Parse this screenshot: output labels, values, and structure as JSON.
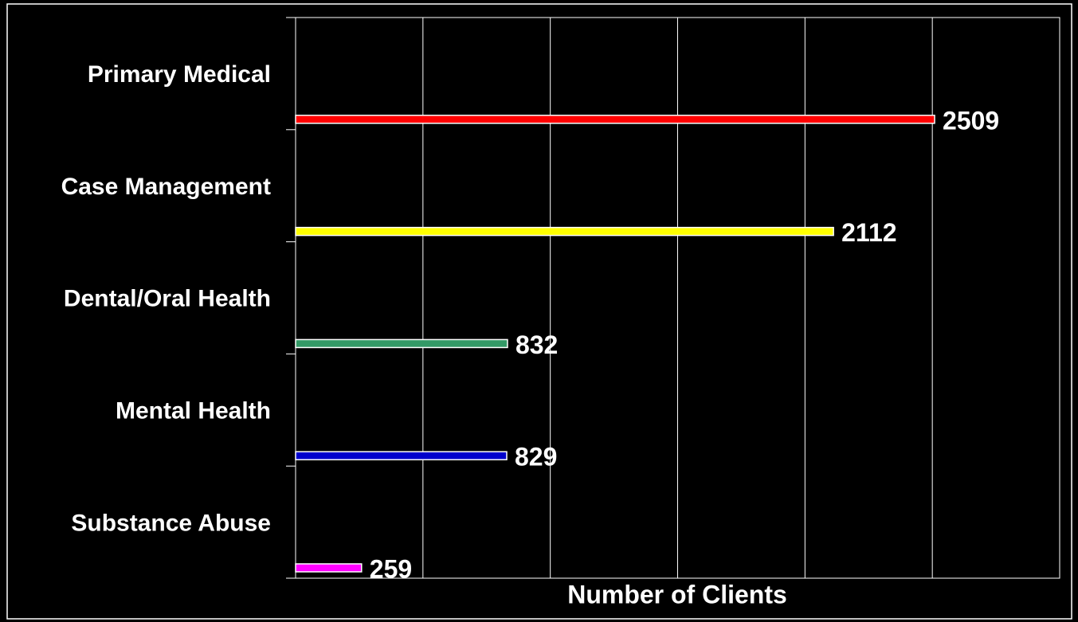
{
  "chart_data": {
    "type": "barh",
    "categories": [
      "Primary Medical",
      "Case Management",
      "Dental/Oral Health",
      "Mental Health",
      "Substance Abuse"
    ],
    "values": [
      2509,
      2112,
      832,
      829,
      259
    ],
    "colors": [
      "#ff0000",
      "#ffff00",
      "#339966",
      "#0000cc",
      "#ff00ff"
    ],
    "xlabel": "Number of Clients",
    "xlim": [
      0,
      3000
    ],
    "xticks": [
      0,
      500,
      1000,
      1500,
      2000,
      2500,
      3000
    ],
    "grid": true
  }
}
